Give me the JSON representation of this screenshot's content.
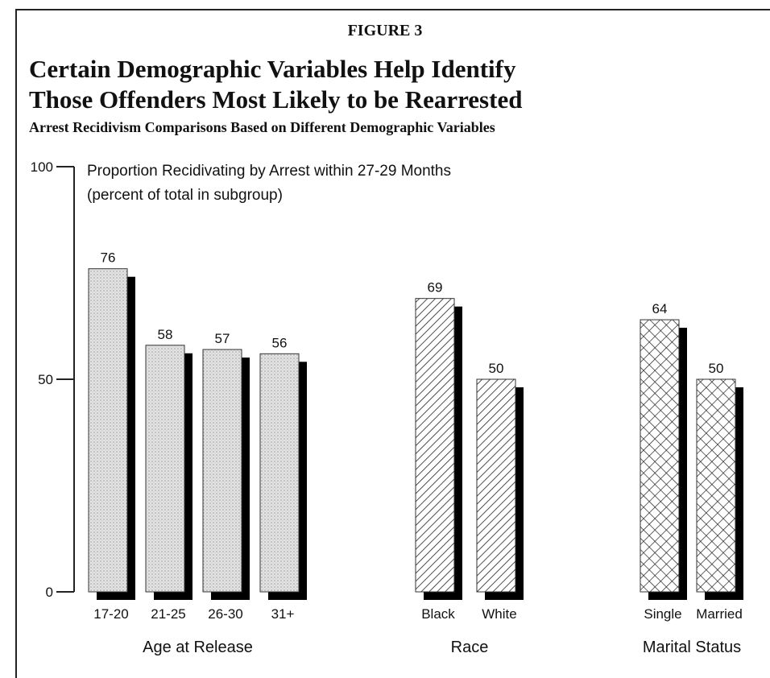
{
  "figure_label": "FIGURE 3",
  "chart_data": {
    "type": "grouped_bar",
    "title": [
      "Certain Demographic Variables Help Identify",
      "Those Offenders Most Likely to be Rearrested"
    ],
    "subtitle": "Arrest Recidivism Comparisons Based on Different Demographic Variables",
    "y_label": [
      "Proportion Recidivating by Arrest within 27-29 Months",
      "(percent of total in subgroup)"
    ],
    "ylim": [
      0,
      100
    ],
    "yticks": [
      0,
      50,
      100
    ],
    "groups": [
      {
        "name": "Age at Release",
        "pattern": "dots",
        "categories": [
          "17-20",
          "21-25",
          "26-30",
          "31+"
        ],
        "values": [
          76,
          58,
          57,
          56
        ]
      },
      {
        "name": "Race",
        "pattern": "diagonal",
        "categories": [
          "Black",
          "White"
        ],
        "values": [
          69,
          50
        ]
      },
      {
        "name": "Marital Status",
        "pattern": "crosshatch",
        "categories": [
          "Single",
          "Married"
        ],
        "values": [
          64,
          50
        ]
      }
    ]
  }
}
